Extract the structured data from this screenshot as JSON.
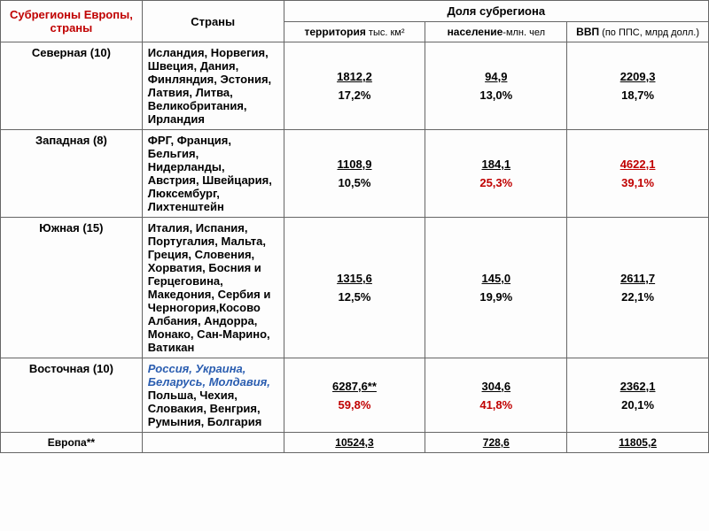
{
  "colors": {
    "header_red": "#c00000",
    "text_black": "#000000",
    "highlight_red": "#c00000",
    "italic_blue": "#2a5db0"
  },
  "header": {
    "regions_col": "Субрегионы Европы, страны",
    "countries_col": "Страны",
    "share_col": "Доля субрегиона",
    "sub_territory_bold": "территория",
    "sub_territory_rest": " тыс. км²",
    "sub_population_bold": "население",
    "sub_population_rest": "-млн. чел",
    "sub_gdp_bold": "ВВП",
    "sub_gdp_rest": " (по ППС, млрд долл.)"
  },
  "rows": [
    {
      "region": "Северная (10)",
      "countries_plain": "Исландия, Норвегия, Швеция, Дания, Финляндия, Эстония, Латвия, Литва, Великобритания, Ирландия",
      "countries_italic": "",
      "territory_val": "1812,2",
      "territory_pct": "17,2%",
      "territory_pct_color": "#000000",
      "population_val": "94,9",
      "population_pct": "13,0%",
      "population_pct_color": "#000000",
      "gdp_val": "2209,3",
      "gdp_val_color": "#000000",
      "gdp_pct": "18,7%",
      "gdp_pct_color": "#000000"
    },
    {
      "region": "Западная (8)",
      "countries_plain": "ФРГ, Франция, Бельгия, Нидерланды, Австрия, Швейцария, Люксембург, Лихтенштейн",
      "countries_italic": "",
      "territory_val": "1108,9",
      "territory_pct": "10,5%",
      "territory_pct_color": "#000000",
      "population_val": "184,1",
      "population_pct": "25,3%",
      "population_pct_color": "#c00000",
      "gdp_val": "4622,1",
      "gdp_val_color": "#c00000",
      "gdp_pct": "39,1%",
      "gdp_pct_color": "#c00000"
    },
    {
      "region": "Южная (15)",
      "countries_plain": "Италия, Испания, Португалия, Мальта, Греция, Словения, Хорватия, Босния и Герцеговина, Македония, Сербия и Черногория,Косово Албания, Андорра, Монако, Сан-Марино, Ватикан",
      "countries_italic": "",
      "territory_val": "1315,6",
      "territory_pct": "12,5%",
      "territory_pct_color": "#000000",
      "population_val": "145,0",
      "population_pct": "19,9%",
      "population_pct_color": "#000000",
      "gdp_val": "2611,7",
      "gdp_val_color": "#000000",
      "gdp_pct": "22,1%",
      "gdp_pct_color": "#000000"
    },
    {
      "region": "Восточная (10)",
      "countries_italic": "Россия, Украина, Беларусь, Молдавия, ",
      "countries_plain": "Польша, Чехия, Словакия, Венгрия, Румыния, Болгария",
      "territory_val": "6287,6**",
      "territory_pct": "59,8%",
      "territory_pct_color": "#c00000",
      "population_val": "304,6",
      "population_pct": "41,8%",
      "population_pct_color": "#c00000",
      "gdp_val": "2362,1",
      "gdp_val_color": "#000000",
      "gdp_pct": "20,1%",
      "gdp_pct_color": "#000000"
    }
  ],
  "total": {
    "label": "Европа**",
    "territory_val": "10524,3",
    "population_val": "728,6",
    "gdp_val": "11805,2"
  }
}
